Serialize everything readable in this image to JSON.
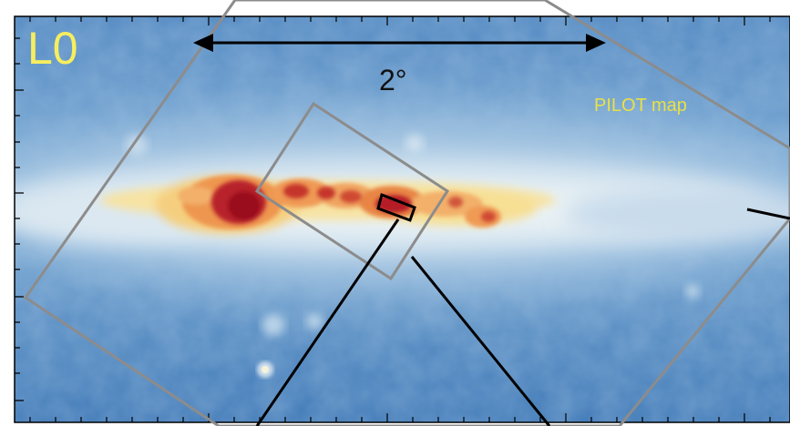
{
  "figure": {
    "panel_label": "L0",
    "scale_label": "2°",
    "footprint_label": "PILOT map"
  },
  "colors": {
    "map_background": "#5e8fc3",
    "ridge_light": "#e8f0f4",
    "ridge_yellow": "#f8dc8a",
    "ridge_orange": "#ea8b4b",
    "ridge_red": "#c32a25",
    "ridge_dark": "#9a0f1d",
    "footprint_outline": "#8c8c8c",
    "zoom_lines": "#000000",
    "panel_label_color": "#f6ee5e",
    "footprint_label_color": "#e9e145"
  }
}
